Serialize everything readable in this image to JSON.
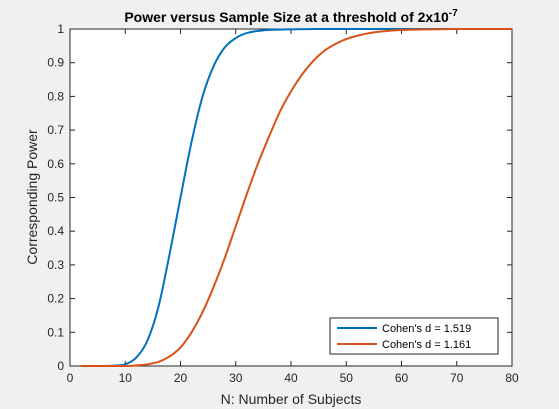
{
  "chart_data": {
    "type": "line",
    "title": "Power versus Sample Size at a threshold of 2x10",
    "title_superscript": "-7",
    "xlabel": "N: Number of Subjects",
    "ylabel": "Corresponding Power",
    "xlim": [
      0,
      80
    ],
    "ylim": [
      0,
      1
    ],
    "xticks": [
      "0",
      "10",
      "20",
      "30",
      "40",
      "50",
      "60",
      "70",
      "80"
    ],
    "yticks": [
      "0",
      "0.1",
      "0.2",
      "0.3",
      "0.4",
      "0.5",
      "0.6",
      "0.7",
      "0.8",
      "0.9",
      "1"
    ],
    "grid": false,
    "legend_position": "bottom-right",
    "series": [
      {
        "name": "Cohen's d = 1.519",
        "color": "#0072bd",
        "x": [
          2,
          6,
          8,
          10,
          12,
          14,
          16,
          18,
          20,
          22,
          24,
          26,
          28,
          30,
          32,
          35,
          40,
          45,
          50,
          55,
          60,
          65,
          70,
          75,
          80
        ],
        "y": [
          0.0,
          0.0,
          0.001,
          0.005,
          0.025,
          0.075,
          0.175,
          0.33,
          0.5,
          0.665,
          0.8,
          0.89,
          0.945,
          0.973,
          0.988,
          0.996,
          0.999,
          1.0,
          1.0,
          1.0,
          1.0,
          1.0,
          1.0,
          1.0,
          1.0
        ]
      },
      {
        "name": "Cohen's d = 1.161",
        "color": "#d95319",
        "x": [
          2,
          10,
          12,
          14,
          16,
          18,
          20,
          22,
          24,
          26,
          28,
          30,
          32,
          34,
          36,
          38,
          40,
          42,
          44,
          46,
          48,
          50,
          52,
          55,
          58,
          60,
          65,
          70,
          75,
          80
        ],
        "y": [
          0.0,
          0.0,
          0.002,
          0.005,
          0.012,
          0.028,
          0.055,
          0.1,
          0.16,
          0.235,
          0.32,
          0.415,
          0.51,
          0.6,
          0.68,
          0.755,
          0.815,
          0.865,
          0.905,
          0.935,
          0.955,
          0.97,
          0.98,
          0.99,
          0.995,
          0.997,
          0.999,
          1.0,
          1.0,
          1.0
        ]
      }
    ]
  }
}
